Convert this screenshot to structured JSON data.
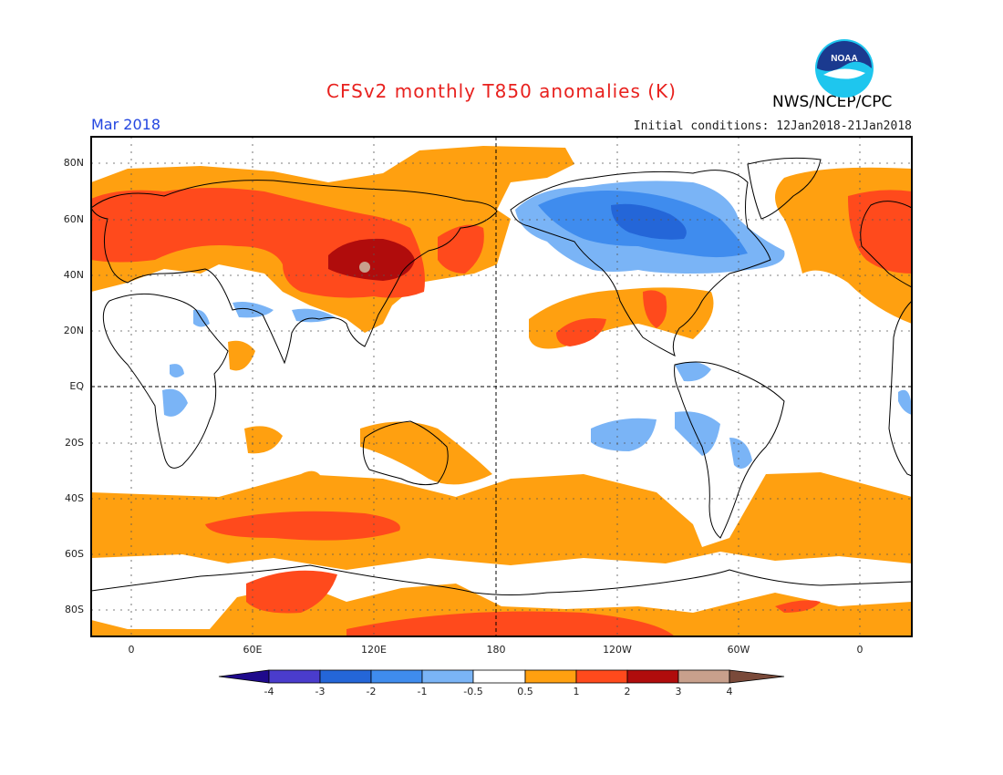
{
  "header": {
    "title": "CFSv2 monthly T850 anomalies (K)",
    "period": "Mar 2018",
    "initial_conditions": "Initial conditions: 12Jan2018-21Jan2018",
    "agency": "NWS/NCEP/CPC",
    "logo_text": "NOAA"
  },
  "axes": {
    "lat_labels": [
      "80N",
      "60N",
      "40N",
      "20N",
      "EQ",
      "20S",
      "40S",
      "60S",
      "80S"
    ],
    "lon_labels": [
      "0",
      "60E",
      "120E",
      "180",
      "120W",
      "60W",
      "0"
    ]
  },
  "colorbar": {
    "labels": [
      "-4",
      "-3",
      "-2",
      "-1",
      "-0.5",
      "0.5",
      "1",
      "2",
      "3",
      "4"
    ],
    "colors": [
      "#1f0a8c",
      "#4a3ccc",
      "#2466d8",
      "#3f8cee",
      "#7ab4f6",
      "#ffffff",
      "#ffa010",
      "#ff4a1c",
      "#b00c0c",
      "#c8a08c",
      "#7a4a3a"
    ]
  }
}
